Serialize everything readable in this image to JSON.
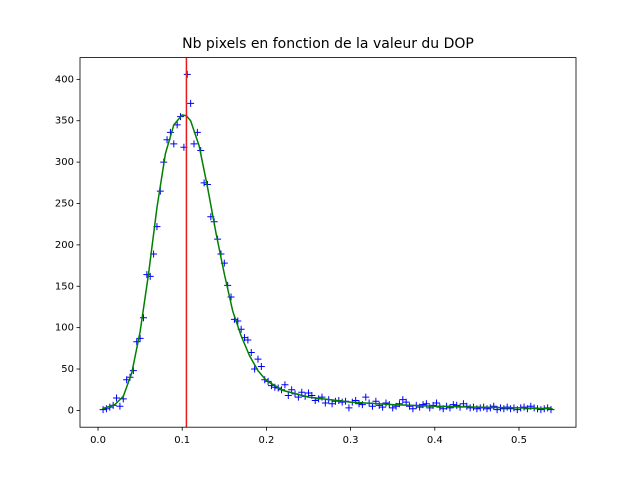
{
  "chart_data": {
    "type": "scatter",
    "title": "Nb pixels en fonction de la valeur du DOP",
    "xlim": [
      -0.0214,
      0.5677
    ],
    "ylim": [
      -20.3,
      426.3
    ],
    "xticks": [
      {
        "value": 0,
        "label": "0.0"
      },
      0.1,
      0.2,
      0.3,
      0.4,
      0.5
    ],
    "yticks": [
      0,
      50,
      100,
      150,
      200,
      250,
      300,
      350,
      400
    ],
    "vline": {
      "x": 0.105,
      "color": "#e41a1c"
    },
    "series": [
      {
        "type": "scatter",
        "marker": "+",
        "color": "#0000ff",
        "x": [
          0.006,
          0.01,
          0.014,
          0.018,
          0.022,
          0.026,
          0.03,
          0.034,
          0.038,
          0.042,
          0.046,
          0.05,
          0.054,
          0.058,
          0.062,
          0.066,
          0.07,
          0.074,
          0.078,
          0.082,
          0.086,
          0.09,
          0.094,
          0.098,
          0.102,
          0.106,
          0.11,
          0.114,
          0.118,
          0.122,
          0.126,
          0.13,
          0.134,
          0.138,
          0.142,
          0.146,
          0.15,
          0.154,
          0.158,
          0.162,
          0.166,
          0.17,
          0.174,
          0.178,
          0.182,
          0.186,
          0.19,
          0.194,
          0.198,
          0.202,
          0.206,
          0.21,
          0.214,
          0.218,
          0.222,
          0.226,
          0.23,
          0.234,
          0.238,
          0.242,
          0.246,
          0.25,
          0.254,
          0.258,
          0.262,
          0.266,
          0.27,
          0.274,
          0.278,
          0.282,
          0.286,
          0.29,
          0.294,
          0.298,
          0.302,
          0.306,
          0.31,
          0.314,
          0.318,
          0.322,
          0.326,
          0.33,
          0.334,
          0.338,
          0.342,
          0.346,
          0.35,
          0.354,
          0.358,
          0.362,
          0.366,
          0.37,
          0.374,
          0.378,
          0.382,
          0.386,
          0.39,
          0.394,
          0.398,
          0.402,
          0.406,
          0.41,
          0.414,
          0.418,
          0.422,
          0.426,
          0.43,
          0.434,
          0.438,
          0.442,
          0.446,
          0.45,
          0.454,
          0.458,
          0.462,
          0.466,
          0.47,
          0.474,
          0.478,
          0.482,
          0.486,
          0.49,
          0.494,
          0.498,
          0.502,
          0.506,
          0.51,
          0.514,
          0.518,
          0.522,
          0.526,
          0.53,
          0.534,
          0.538
        ],
        "values": [
          1,
          2,
          4,
          6,
          15,
          5,
          14,
          37,
          40,
          48,
          83,
          87,
          112,
          164,
          162,
          189,
          222,
          265,
          300,
          327,
          336,
          322,
          345,
          355,
          318,
          406,
          371,
          322,
          336,
          314,
          275,
          273,
          234,
          228,
          207,
          189,
          178,
          151,
          137,
          110,
          108,
          98,
          88,
          85,
          70,
          50,
          62,
          53,
          37,
          35,
          30,
          28,
          27,
          25,
          31,
          18,
          25,
          20,
          16,
          22,
          17,
          21,
          18,
          12,
          14,
          16,
          9,
          13,
          8,
          11,
          12,
          10,
          11,
          3,
          10,
          12,
          8,
          7,
          16,
          9,
          5,
          11,
          6,
          4,
          9,
          7,
          3,
          5,
          8,
          13,
          10,
          5,
          2,
          6,
          4,
          7,
          8,
          3,
          6,
          9,
          4,
          2,
          5,
          3,
          7,
          6,
          4,
          8,
          5,
          3,
          4,
          2,
          3,
          4,
          2,
          3,
          5,
          1,
          3,
          2,
          4,
          2,
          3,
          1,
          3,
          4,
          2,
          5,
          3,
          2,
          1,
          2,
          3,
          1
        ]
      },
      {
        "type": "line",
        "color": "#008000",
        "x": [
          0.005,
          0.02,
          0.03,
          0.04,
          0.05,
          0.06,
          0.07,
          0.08,
          0.09,
          0.1,
          0.105,
          0.11,
          0.12,
          0.13,
          0.14,
          0.15,
          0.16,
          0.17,
          0.18,
          0.19,
          0.2,
          0.22,
          0.25,
          0.3,
          0.35,
          0.4,
          0.45,
          0.5,
          0.54
        ],
        "values": [
          2,
          7,
          17,
          45,
          95,
          165,
          245,
          310,
          345,
          357,
          356,
          350,
          320,
          270,
          215,
          165,
          120,
          90,
          66,
          48,
          36,
          24,
          16,
          10,
          7,
          5,
          4,
          3,
          2
        ]
      }
    ]
  }
}
